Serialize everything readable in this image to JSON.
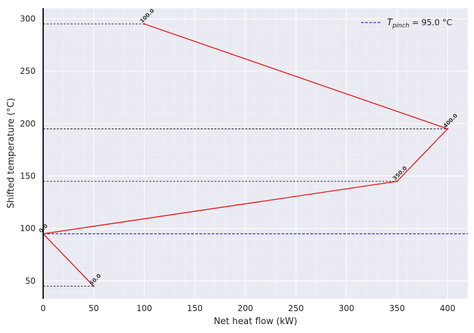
{
  "chart_data": {
    "type": "line",
    "title": "",
    "xlabel": "Net heat flow (kW)",
    "ylabel": "Shifted temperature (°C)",
    "xlim": [
      0,
      420
    ],
    "ylim": [
      33,
      310
    ],
    "x_ticks": [
      "0",
      "50",
      "100",
      "150",
      "200",
      "250",
      "300",
      "350",
      "400"
    ],
    "y_ticks": [
      "50",
      "100",
      "150",
      "200",
      "250",
      "300"
    ],
    "grid": true,
    "legend_position": "top-right",
    "series": [
      {
        "color": "#e41a1c",
        "points": [
          {
            "x": 100,
            "y": 295,
            "label": "100.0"
          },
          {
            "x": 400,
            "y": 195,
            "label": "400.0"
          },
          {
            "x": 350,
            "y": 145,
            "label": "350.0"
          },
          {
            "x": 0,
            "y": 95,
            "label": "0.0"
          },
          {
            "x": 50,
            "y": 45,
            "label": "50.0"
          }
        ]
      }
    ],
    "reference_lines": [
      {
        "y": 295,
        "x_end": 100,
        "color": "#000000",
        "style": "dashed"
      },
      {
        "y": 195,
        "x_end": 400,
        "color": "#000000",
        "style": "dashed"
      },
      {
        "y": 145,
        "x_end": 350,
        "color": "#000000",
        "style": "dashed"
      },
      {
        "y": 45,
        "x_end": 50,
        "color": "#000000",
        "style": "dashed"
      }
    ],
    "pinch_line": {
      "y": 95,
      "color": "#0000cc",
      "legend_symbol": "T",
      "legend_subscript": "pinch",
      "legend_value": " = 95.0 °C"
    },
    "colors": {
      "plot_background": "#eaeaf2",
      "grid": "#ffffff"
    }
  }
}
